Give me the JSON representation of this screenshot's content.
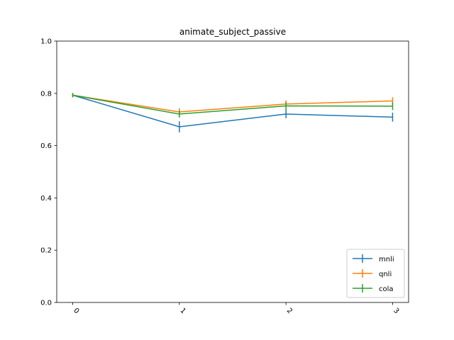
{
  "chart_data": {
    "type": "line",
    "title": "animate_subject_passive",
    "xlabel": "",
    "ylabel": "",
    "x": [
      0,
      1,
      2,
      3
    ],
    "xticks": [
      "0",
      "1",
      "2",
      "3"
    ],
    "yticks": [
      "0.0",
      "0.2",
      "0.4",
      "0.6",
      "0.8",
      "1.0"
    ],
    "ylim": [
      0.0,
      1.0
    ],
    "xlim": [
      -0.15,
      3.15
    ],
    "grid": false,
    "legend_position": "lower-right",
    "series": [
      {
        "name": "mnli",
        "color": "#1f77b4",
        "values": [
          0.793,
          0.672,
          0.721,
          0.709
        ],
        "errors": [
          0.0,
          0.013,
          0.008,
          0.009
        ]
      },
      {
        "name": "qnli",
        "color": "#ff7f0e",
        "values": [
          0.793,
          0.729,
          0.759,
          0.771
        ],
        "errors": [
          0.0,
          0.006,
          0.006,
          0.006
        ]
      },
      {
        "name": "cola",
        "color": "#2ca02c",
        "values": [
          0.793,
          0.721,
          0.752,
          0.751
        ],
        "errors": [
          0.0,
          0.006,
          0.007,
          0.007
        ]
      }
    ]
  }
}
